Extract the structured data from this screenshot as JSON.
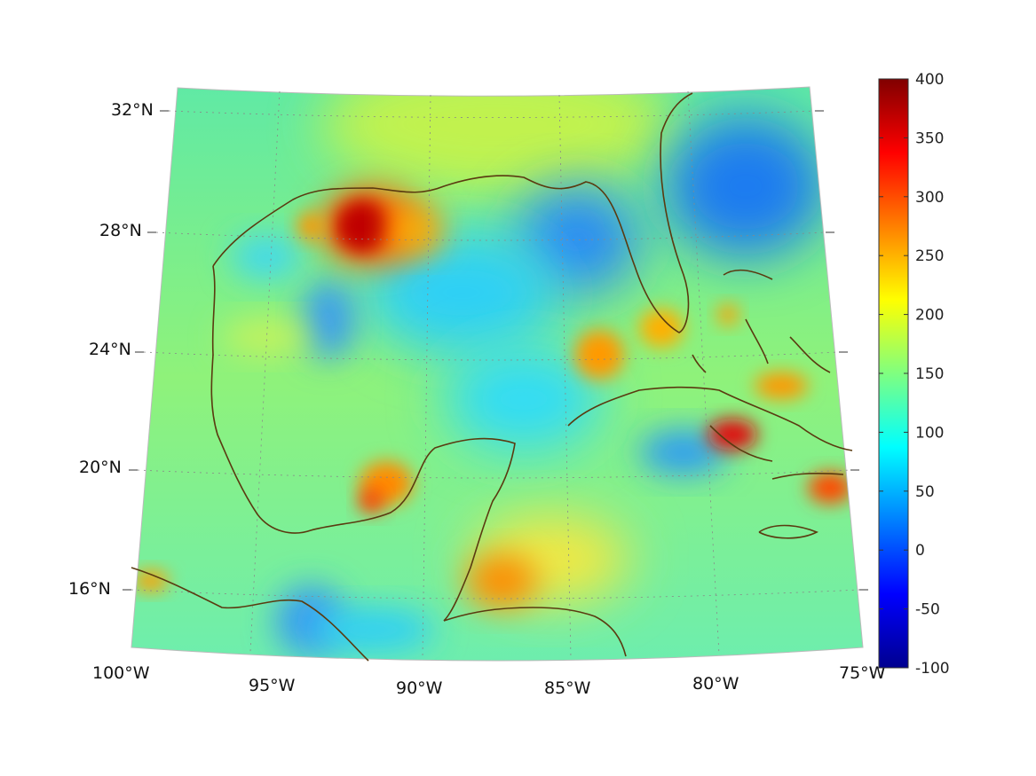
{
  "map": {
    "projection": "conic",
    "lon_range": [
      "100°W",
      "75°W"
    ],
    "lat_range": [
      "14°N",
      "33°N"
    ],
    "meridian_labels": [
      "100°W",
      "95°W",
      "90°W",
      "85°W",
      "80°W",
      "75°W"
    ],
    "parallel_labels": [
      "32°N",
      "28°N",
      "24°N",
      "20°N",
      "16°N"
    ],
    "grid": "dotted",
    "coastline_color": "#5a3a10",
    "colormap": "jet"
  },
  "colorbar": {
    "ticks": [
      "400",
      "350",
      "300",
      "250",
      "200",
      "150",
      "100",
      "50",
      "0",
      "-50",
      "-100"
    ],
    "min": -100,
    "max": 400
  }
}
